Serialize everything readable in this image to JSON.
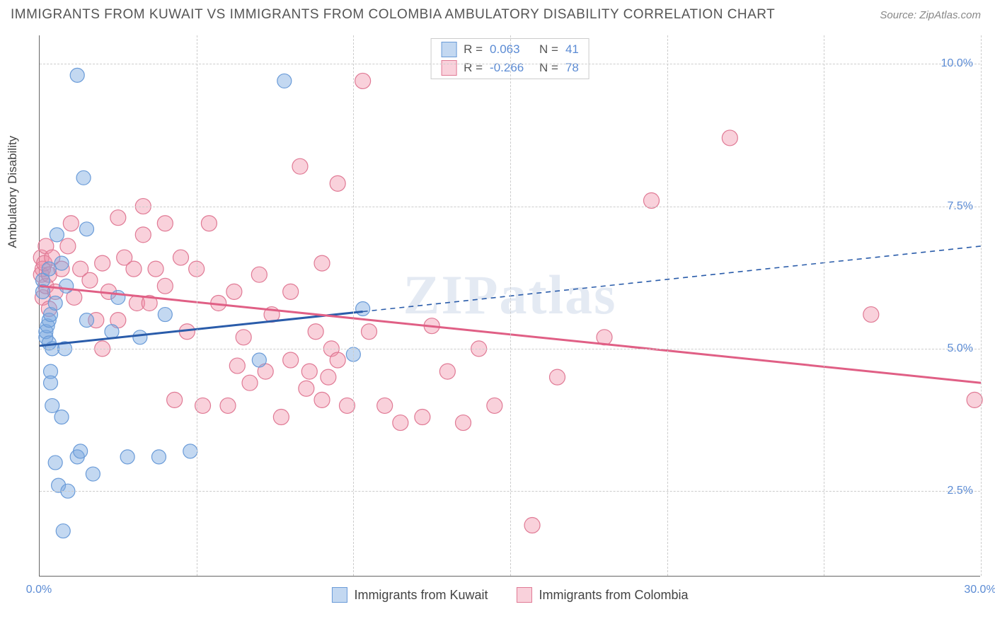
{
  "title": "IMMIGRANTS FROM KUWAIT VS IMMIGRANTS FROM COLOMBIA AMBULATORY DISABILITY CORRELATION CHART",
  "source_label": "Source: ",
  "source_value": "ZipAtlas.com",
  "y_axis_title": "Ambulatory Disability",
  "watermark": "ZIPatlas",
  "chart": {
    "type": "scatter",
    "xlim": [
      0,
      30
    ],
    "ylim": [
      1.0,
      10.5
    ],
    "x_ticks": [
      0,
      5,
      10,
      15,
      20,
      25,
      30
    ],
    "x_tick_labels": {
      "0": "0.0%",
      "30": "30.0%"
    },
    "y_ticks": [
      2.5,
      5.0,
      7.5,
      10.0
    ],
    "y_tick_labels": [
      "2.5%",
      "5.0%",
      "7.5%",
      "10.0%"
    ],
    "background_color": "#ffffff",
    "grid_color": "#cccccc"
  },
  "series": {
    "kuwait": {
      "label": "Immigrants from Kuwait",
      "fill_color": "rgba(122,168,224,0.45)",
      "stroke_color": "#6a9bd8",
      "line_color": "#2a5caa",
      "R": "0.063",
      "N": "41",
      "trend": {
        "x1": 0,
        "y1": 5.05,
        "x2": 30,
        "y2": 6.8,
        "solid_until_x": 10.3
      },
      "marker_r": 10,
      "points": [
        [
          0.1,
          6.2
        ],
        [
          0.1,
          6.0
        ],
        [
          0.2,
          5.2
        ],
        [
          0.2,
          5.3
        ],
        [
          0.25,
          5.4
        ],
        [
          0.3,
          5.1
        ],
        [
          0.3,
          5.5
        ],
        [
          0.3,
          6.4
        ],
        [
          0.35,
          4.6
        ],
        [
          0.35,
          5.6
        ],
        [
          0.35,
          4.4
        ],
        [
          0.4,
          5.0
        ],
        [
          0.4,
          4.0
        ],
        [
          0.5,
          5.8
        ],
        [
          0.5,
          3.0
        ],
        [
          0.55,
          7.0
        ],
        [
          0.6,
          2.6
        ],
        [
          0.7,
          6.5
        ],
        [
          0.7,
          3.8
        ],
        [
          0.75,
          1.8
        ],
        [
          0.8,
          5.0
        ],
        [
          0.85,
          6.1
        ],
        [
          0.9,
          2.5
        ],
        [
          1.2,
          9.8
        ],
        [
          1.2,
          3.1
        ],
        [
          1.3,
          3.2
        ],
        [
          1.4,
          8.0
        ],
        [
          1.5,
          5.5
        ],
        [
          1.5,
          7.1
        ],
        [
          1.7,
          2.8
        ],
        [
          2.3,
          5.3
        ],
        [
          2.5,
          5.9
        ],
        [
          2.8,
          3.1
        ],
        [
          3.2,
          5.2
        ],
        [
          3.8,
          3.1
        ],
        [
          4.0,
          5.6
        ],
        [
          4.8,
          3.2
        ],
        [
          7.0,
          4.8
        ],
        [
          7.8,
          9.7
        ],
        [
          10.0,
          4.9
        ],
        [
          10.3,
          5.7
        ]
      ]
    },
    "colombia": {
      "label": "Immigrants from Colombia",
      "fill_color": "rgba(240,140,165,0.40)",
      "stroke_color": "#e07a95",
      "line_color": "#e05f85",
      "R": "-0.266",
      "N": "78",
      "trend": {
        "x1": 0,
        "y1": 6.1,
        "x2": 30,
        "y2": 4.4,
        "solid_until_x": 30
      },
      "marker_r": 11,
      "points": [
        [
          0.05,
          6.3
        ],
        [
          0.05,
          6.6
        ],
        [
          0.1,
          6.4
        ],
        [
          0.1,
          5.9
        ],
        [
          0.15,
          6.5
        ],
        [
          0.2,
          6.1
        ],
        [
          0.2,
          6.8
        ],
        [
          0.3,
          6.3
        ],
        [
          0.3,
          5.7
        ],
        [
          0.4,
          6.6
        ],
        [
          0.5,
          6.0
        ],
        [
          0.7,
          6.4
        ],
        [
          0.9,
          6.8
        ],
        [
          1.0,
          7.2
        ],
        [
          1.1,
          5.9
        ],
        [
          1.3,
          6.4
        ],
        [
          1.6,
          6.2
        ],
        [
          1.8,
          5.5
        ],
        [
          2.0,
          6.5
        ],
        [
          2.0,
          5.0
        ],
        [
          2.2,
          6.0
        ],
        [
          2.5,
          7.3
        ],
        [
          2.5,
          5.5
        ],
        [
          2.7,
          6.6
        ],
        [
          3.0,
          6.4
        ],
        [
          3.1,
          5.8
        ],
        [
          3.3,
          7.0
        ],
        [
          3.3,
          7.5
        ],
        [
          3.5,
          5.8
        ],
        [
          3.7,
          6.4
        ],
        [
          4.0,
          6.1
        ],
        [
          4.0,
          7.2
        ],
        [
          4.3,
          4.1
        ],
        [
          4.5,
          6.6
        ],
        [
          4.7,
          5.3
        ],
        [
          5.0,
          6.4
        ],
        [
          5.2,
          4.0
        ],
        [
          5.4,
          7.2
        ],
        [
          5.7,
          5.8
        ],
        [
          6.0,
          4.0
        ],
        [
          6.2,
          6.0
        ],
        [
          6.3,
          4.7
        ],
        [
          6.5,
          5.2
        ],
        [
          6.7,
          4.4
        ],
        [
          7.0,
          6.3
        ],
        [
          7.2,
          4.6
        ],
        [
          7.4,
          5.6
        ],
        [
          7.7,
          3.8
        ],
        [
          8.0,
          6.0
        ],
        [
          8.0,
          4.8
        ],
        [
          8.3,
          8.2
        ],
        [
          8.5,
          4.3
        ],
        [
          8.6,
          4.6
        ],
        [
          8.8,
          5.3
        ],
        [
          9.0,
          4.1
        ],
        [
          9.0,
          6.5
        ],
        [
          9.2,
          4.5
        ],
        [
          9.3,
          5.0
        ],
        [
          9.5,
          4.8
        ],
        [
          9.5,
          7.9
        ],
        [
          9.8,
          4.0
        ],
        [
          10.3,
          9.7
        ],
        [
          10.5,
          5.3
        ],
        [
          11.0,
          4.0
        ],
        [
          11.5,
          3.7
        ],
        [
          12.2,
          3.8
        ],
        [
          13.0,
          4.6
        ],
        [
          13.5,
          3.7
        ],
        [
          14.5,
          4.0
        ],
        [
          15.7,
          1.9
        ],
        [
          19.5,
          7.6
        ],
        [
          22.0,
          8.7
        ],
        [
          26.5,
          5.6
        ],
        [
          29.8,
          4.1
        ],
        [
          12.5,
          5.4
        ],
        [
          14.0,
          5.0
        ],
        [
          16.5,
          4.5
        ],
        [
          18.0,
          5.2
        ]
      ]
    }
  },
  "legend_top": {
    "r_label": "R  =",
    "n_label": "N  ="
  }
}
